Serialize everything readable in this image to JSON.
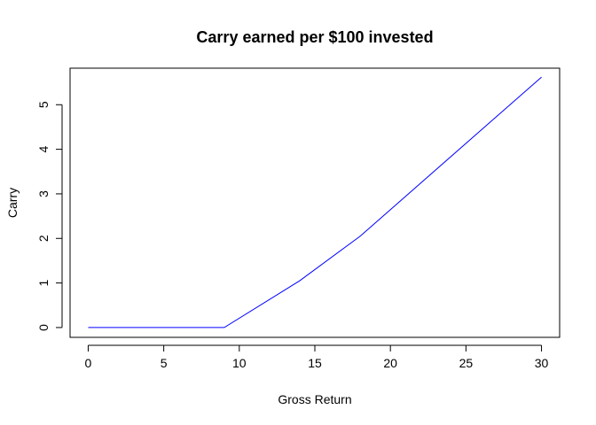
{
  "chart_data": {
    "type": "line",
    "title": "Carry earned per $100 invested",
    "xlabel": "Gross Return",
    "ylabel": "Carry",
    "xlim": [
      -1.2,
      31.2
    ],
    "ylim": [
      -0.22,
      5.82
    ],
    "x_ticks": [
      0,
      5,
      10,
      15,
      20,
      25,
      30
    ],
    "y_ticks": [
      0,
      1,
      2,
      3,
      4,
      5
    ],
    "grid": false,
    "legend": "none",
    "line_color": "#0000ff",
    "series": [
      {
        "x": [
          0,
          9,
          14,
          18,
          30
        ],
        "y": [
          0,
          0,
          1.05,
          2.05,
          5.62
        ]
      }
    ]
  }
}
